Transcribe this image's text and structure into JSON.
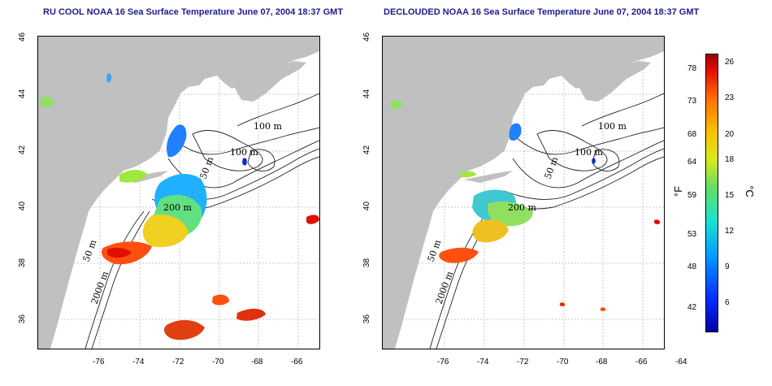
{
  "titles": {
    "left": "RU COOL NOAA 16 Sea Surface Temperature June 07, 2004 18:37 GMT",
    "right": "DECLOUDED NOAA 16 Sea Surface Temperature June 07, 2004 18:37 GMT"
  },
  "axes": {
    "x_ticks": [
      "-76",
      "-74",
      "-72",
      "-70",
      "-68",
      "-66",
      "-64"
    ],
    "y_ticks": [
      "46",
      "44",
      "42",
      "40",
      "38",
      "36"
    ]
  },
  "contours": {
    "label_100_a": "100 m",
    "label_100_b": "100 m",
    "label_50": "50 m",
    "label_200": "200 m",
    "label_50_south": "50 m",
    "label_2000": "2000 m"
  },
  "colorbar": {
    "unit_f": "°F",
    "unit_c": "°C",
    "f_ticks": [
      "78",
      "73",
      "68",
      "64",
      "59",
      "53",
      "48",
      "42"
    ],
    "c_ticks": [
      "26",
      "23",
      "20",
      "18",
      "15",
      "12",
      "9",
      "6"
    ]
  },
  "colors": {
    "land": "#c0c0c0",
    "title": "#1c1c8c",
    "grid": "#c8c8c8"
  }
}
